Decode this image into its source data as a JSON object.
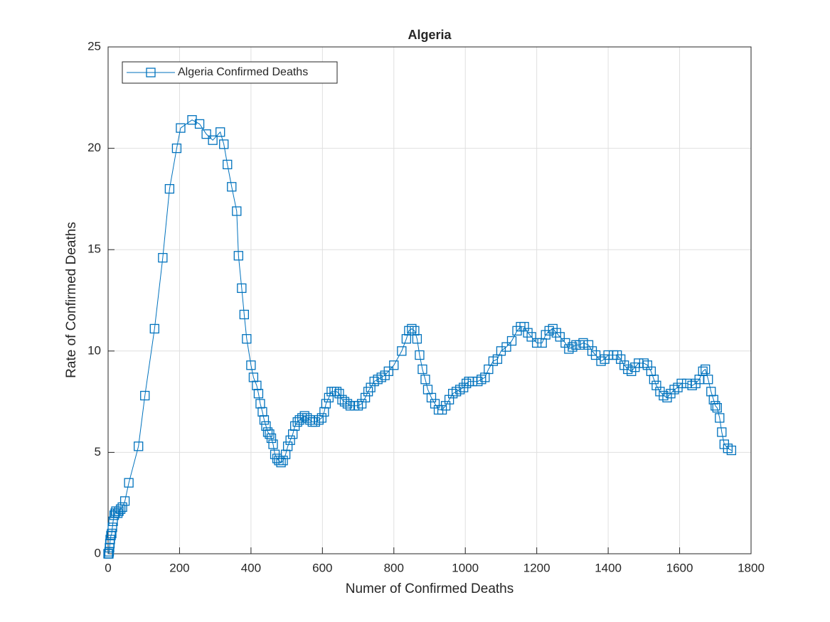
{
  "chart_data": {
    "type": "line",
    "title": "Algeria",
    "x_label": "Numer of Confirmed Deaths",
    "y_label": "Rate of Confirmed Deaths",
    "xlim": [
      0,
      1800
    ],
    "xticks": [
      0,
      200,
      400,
      600,
      800,
      1000,
      1200,
      1400,
      1600,
      1800
    ],
    "ylim": [
      0,
      25
    ],
    "yticks": [
      0,
      5,
      10,
      15,
      20,
      25
    ],
    "grid": true,
    "legend": "upper-left",
    "series": [
      {
        "name": "Algeria Confirmed Deaths",
        "color": "#0072bd",
        "marker": "square",
        "x": [
          0,
          1,
          2,
          3,
          4,
          5,
          6,
          8,
          10,
          12,
          14,
          17,
          20,
          22,
          27,
          30,
          35,
          40,
          47,
          58,
          85,
          103,
          130,
          153,
          172,
          192,
          203,
          235,
          256,
          275,
          293,
          314,
          324,
          334,
          346,
          360,
          365,
          374,
          381,
          388,
          400,
          407,
          416,
          421,
          426,
          432,
          437,
          442,
          447,
          452,
          457,
          462,
          467,
          473,
          478,
          484,
          490,
          497,
          503,
          510,
          517,
          523,
          530,
          536,
          543,
          550,
          557,
          565,
          572,
          580,
          590,
          598,
          605,
          610,
          618,
          625,
          633,
          640,
          647,
          655,
          662,
          670,
          678,
          690,
          700,
          710,
          720,
          728,
          735,
          745,
          755,
          765,
          775,
          785,
          800,
          822,
          835,
          842,
          850,
          858,
          865,
          872,
          880,
          888,
          895,
          905,
          915,
          925,
          935,
          945,
          955,
          965,
          975,
          985,
          995,
          1003,
          1010,
          1020,
          1035,
          1045,
          1055,
          1065,
          1078,
          1090,
          1100,
          1115,
          1130,
          1145,
          1155,
          1165,
          1175,
          1185,
          1200,
          1215,
          1225,
          1235,
          1245,
          1255,
          1265,
          1280,
          1290,
          1300,
          1310,
          1320,
          1330,
          1345,
          1355,
          1365,
          1380,
          1390,
          1400,
          1415,
          1425,
          1435,
          1445,
          1455,
          1465,
          1475,
          1485,
          1500,
          1510,
          1520,
          1528,
          1535,
          1545,
          1555,
          1565,
          1575,
          1585,
          1595,
          1605,
          1620,
          1635,
          1645,
          1655,
          1665,
          1672,
          1680,
          1688,
          1695,
          1700,
          1705,
          1712,
          1718,
          1725,
          1735,
          1745
        ],
        "values": [
          0,
          0,
          0,
          0.1,
          0.3,
          0.5,
          0.7,
          0.9,
          1.0,
          1.3,
          1.6,
          1.9,
          2.0,
          2.1,
          2.0,
          2.1,
          2.2,
          2.3,
          2.6,
          3.5,
          5.3,
          7.8,
          11.1,
          14.6,
          18.0,
          20.0,
          21.0,
          21.4,
          21.2,
          20.7,
          20.4,
          20.8,
          20.2,
          19.2,
          18.1,
          16.9,
          14.7,
          13.1,
          11.8,
          10.6,
          9.3,
          8.7,
          8.3,
          7.9,
          7.4,
          7.0,
          6.6,
          6.3,
          6.0,
          5.9,
          5.7,
          5.4,
          4.9,
          4.7,
          4.6,
          4.5,
          4.6,
          4.9,
          5.3,
          5.6,
          5.9,
          6.3,
          6.5,
          6.6,
          6.7,
          6.8,
          6.7,
          6.6,
          6.5,
          6.5,
          6.6,
          6.7,
          7.0,
          7.4,
          7.7,
          8.0,
          8.0,
          8.0,
          7.9,
          7.6,
          7.5,
          7.4,
          7.3,
          7.3,
          7.3,
          7.4,
          7.7,
          8.0,
          8.2,
          8.5,
          8.6,
          8.7,
          8.8,
          9.0,
          9.3,
          10.0,
          10.6,
          11.0,
          11.1,
          11.0,
          10.6,
          9.8,
          9.1,
          8.6,
          8.1,
          7.7,
          7.4,
          7.1,
          7.1,
          7.3,
          7.6,
          7.9,
          8.0,
          8.1,
          8.2,
          8.4,
          8.5,
          8.5,
          8.5,
          8.6,
          8.7,
          9.1,
          9.5,
          9.6,
          10.0,
          10.2,
          10.5,
          11.0,
          11.2,
          11.2,
          10.9,
          10.7,
          10.4,
          10.4,
          10.8,
          11.0,
          11.1,
          10.9,
          10.7,
          10.4,
          10.1,
          10.2,
          10.3,
          10.3,
          10.4,
          10.3,
          10.0,
          9.8,
          9.5,
          9.6,
          9.8,
          9.8,
          9.8,
          9.6,
          9.3,
          9.1,
          9.0,
          9.2,
          9.4,
          9.4,
          9.3,
          9.0,
          8.6,
          8.3,
          8.0,
          7.8,
          7.7,
          7.9,
          8.1,
          8.2,
          8.4,
          8.4,
          8.3,
          8.4,
          8.6,
          9.0,
          9.1,
          8.6,
          8.0,
          7.6,
          7.3,
          7.2,
          6.7,
          6.0,
          5.4,
          5.2,
          5.1
        ]
      }
    ]
  }
}
